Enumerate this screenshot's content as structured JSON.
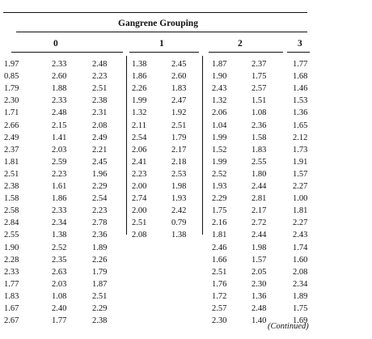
{
  "table": {
    "title": "Gangrene Grouping",
    "continued": "(Continued)",
    "groups": [
      {
        "label": "0",
        "columns": [
          [
            "1.97",
            "0.85",
            "1.79",
            "2.30",
            "1.71",
            "2.66",
            "2.49",
            "2.37",
            "1.81",
            "2.51",
            "2.38",
            "1.58",
            "2.58",
            "2.84",
            "2.55",
            "1.90",
            "2.28",
            "2.33",
            "1.77",
            "1.83",
            "1.67",
            "2.67"
          ],
          [
            "2.33",
            "2.60",
            "1.88",
            "2.33",
            "2.48",
            "2.15",
            "1.41",
            "2.03",
            "2.59",
            "2.23",
            "1.61",
            "1.86",
            "2.33",
            "2.34",
            "1.38",
            "2.52",
            "2.35",
            "2.63",
            "2.03",
            "1.08",
            "2.40",
            "1.77"
          ],
          [
            "2.48",
            "2.23",
            "2.51",
            "2.38",
            "2.31",
            "2.08",
            "2.49",
            "2.21",
            "2.45",
            "1.96",
            "2.29",
            "2.54",
            "2.23",
            "2.78",
            "2.36",
            "1.89",
            "2.26",
            "1.79",
            "1.87",
            "2.51",
            "2.29",
            "2.38"
          ]
        ]
      },
      {
        "label": "1",
        "columns": [
          [
            "1.38",
            "1.86",
            "2.26",
            "1.99",
            "1.32",
            "2.11",
            "2.54",
            "2.06",
            "2.41",
            "2.23",
            "2.00",
            "2.74",
            "2.00",
            "2.51",
            "2.08"
          ],
          [
            "2.45",
            "2.60",
            "1.83",
            "2.47",
            "1.92",
            "2.51",
            "1.79",
            "2.17",
            "2.18",
            "2.53",
            "1.98",
            "1.93",
            "2.42",
            "0.79",
            "1.38"
          ]
        ]
      },
      {
        "label": "2",
        "columns": [
          [
            "1.87",
            "1.90",
            "2.43",
            "1.32",
            "2.06",
            "1.04",
            "1.99",
            "1.52",
            "1.99",
            "2.52",
            "1.93",
            "2.29",
            "1.75",
            "2.16",
            "1.81",
            "2.46",
            "1.66",
            "2.51",
            "1.76",
            "1.72",
            "2.57",
            "2.30"
          ],
          [
            "2.37",
            "1.75",
            "2.57",
            "1.51",
            "1.08",
            "2.36",
            "1.58",
            "1.83",
            "2.55",
            "1.80",
            "2.44",
            "2.81",
            "2.17",
            "2.72",
            "2.44",
            "1.98",
            "1.57",
            "2.05",
            "2.30",
            "1.36",
            "2.48",
            "1.40"
          ]
        ]
      },
      {
        "label": "3",
        "columns": [
          [
            "1.77",
            "1.68",
            "1.46",
            "1.53",
            "1.36",
            "1.65",
            "2.12",
            "1.73",
            "1.91",
            "1.57",
            "2.27",
            "1.00",
            "1.81",
            "2.27",
            "2.43",
            "1.74",
            "1.60",
            "2.08",
            "2.34",
            "1.89",
            "1.75",
            "1.69"
          ]
        ]
      }
    ]
  }
}
